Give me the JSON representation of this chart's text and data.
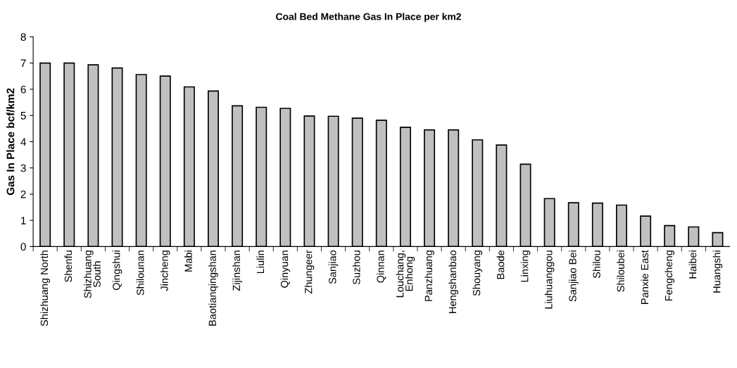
{
  "chart_data": {
    "type": "bar",
    "title": "Coal Bed Methane Gas In Place per km2",
    "ylabel": "Gas In Place bcf/km2",
    "categories": [
      "Shizhuang North",
      "Shenfu",
      "Shizhuang\nSouth",
      "Qingshui",
      "Shilounan",
      "Jincheng",
      "Mabi",
      "Baotianqingshan",
      "Zijinshan",
      "Liulin",
      "Qinyuan",
      "Zhungeer",
      "Sanjiao",
      "Suzhou",
      "Qinnan",
      "Louchang,\nEnhong",
      "Panzhuang",
      "Hengshanbao",
      "Shouyang",
      "Baode",
      "Linxing",
      "Liuhuanggou",
      "Sanjiao Bei",
      "Shilou",
      "Shiloubei",
      "Panxie East",
      "Fengcheng",
      "Haibei",
      "Huangshi"
    ],
    "values": [
      7.0,
      7.0,
      6.93,
      6.81,
      6.56,
      6.5,
      6.09,
      5.93,
      5.37,
      5.31,
      5.27,
      4.98,
      4.97,
      4.9,
      4.82,
      4.55,
      4.45,
      4.45,
      4.07,
      3.87,
      3.14,
      1.83,
      1.67,
      1.66,
      1.58,
      1.16,
      0.8,
      0.75,
      0.53
    ],
    "color": "#c0c0c0",
    "ylim": [
      0,
      8
    ],
    "yticks": [
      0,
      1,
      2,
      3,
      4,
      5,
      6,
      7,
      8
    ],
    "grid": false,
    "legend": false
  }
}
